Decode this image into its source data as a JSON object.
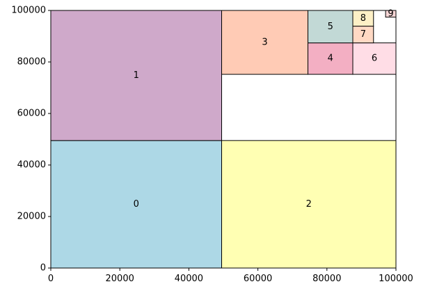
{
  "chart_data": {
    "type": "treemap",
    "title": "",
    "xlabel": "",
    "ylabel": "",
    "xlim": [
      0,
      100000
    ],
    "ylim": [
      0,
      100000
    ],
    "grid": false,
    "x_ticks": [
      0,
      20000,
      40000,
      60000,
      80000,
      100000
    ],
    "y_ticks": [
      0,
      20000,
      40000,
      60000,
      80000,
      100000
    ],
    "x_tick_labels": [
      "0",
      "20000",
      "40000",
      "60000",
      "80000",
      "100000"
    ],
    "y_tick_labels": [
      "0",
      "20000",
      "40000",
      "60000",
      "80000",
      "100000"
    ],
    "rectangles": [
      {
        "label": "0",
        "x": 0,
        "y": 0,
        "dx": 49500,
        "dy": 49500,
        "color": "#add8e6"
      },
      {
        "label": "1",
        "x": 0,
        "y": 49500,
        "dx": 49500,
        "dy": 50500,
        "color": "#cfa9ca"
      },
      {
        "label": "2",
        "x": 49500,
        "y": 0,
        "dx": 50500,
        "dy": 49500,
        "color": "#ffffb3"
      },
      {
        "label": "3",
        "x": 49500,
        "y": 75200,
        "dx": 25000,
        "dy": 24800,
        "color": "#ffcbb5"
      },
      {
        "label": "4",
        "x": 74500,
        "y": 75200,
        "dx": 13000,
        "dy": 12200,
        "color": "#f3afc3"
      },
      {
        "label": "5",
        "x": 74500,
        "y": 87400,
        "dx": 13000,
        "dy": 12600,
        "color": "#c2d9d6"
      },
      {
        "label": "6",
        "x": 87500,
        "y": 75200,
        "dx": 12500,
        "dy": 12200,
        "color": "#ffdde6"
      },
      {
        "label": "7",
        "x": 87500,
        "y": 87400,
        "dx": 6000,
        "dy": 6500,
        "color": "#ffd9c4"
      },
      {
        "label": "8",
        "x": 87500,
        "y": 93900,
        "dx": 6000,
        "dy": 6100,
        "color": "#fdf0c6"
      },
      {
        "label": "9",
        "x": 97000,
        "y": 97400,
        "dx": 3000,
        "dy": 2600,
        "color": "#f7d6d6"
      }
    ]
  }
}
